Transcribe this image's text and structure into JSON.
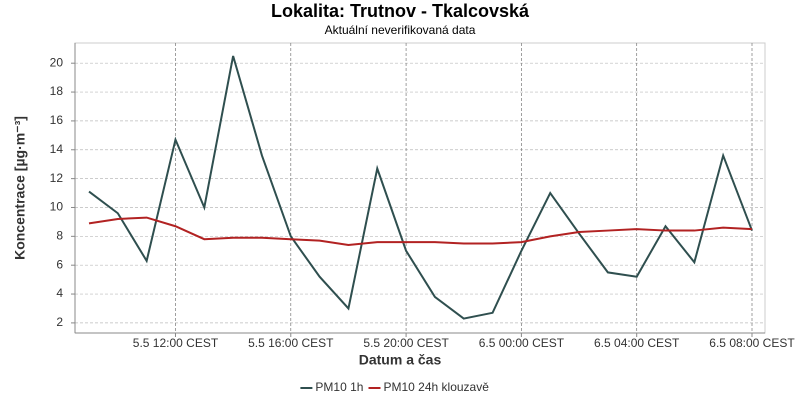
{
  "chart_data": {
    "type": "line",
    "title": "Lokalita: Trutnov - Tkalcovská",
    "subtitle": "Aktuální neverifikovaná data",
    "xlabel": "Datum a čas",
    "ylabel": "Koncentrace [µg·m⁻³]",
    "x": [
      "5.5 09:00 CEST",
      "5.5 10:00 CEST",
      "5.5 11:00 CEST",
      "5.5 12:00 CEST",
      "5.5 13:00 CEST",
      "5.5 14:00 CEST",
      "5.5 15:00 CEST",
      "5.5 16:00 CEST",
      "5.5 17:00 CEST",
      "5.5 18:00 CEST",
      "5.5 19:00 CEST",
      "5.5 20:00 CEST",
      "5.5 21:00 CEST",
      "5.5 22:00 CEST",
      "5.5 23:00 CEST",
      "6.5 00:00 CEST",
      "6.5 01:00 CEST",
      "6.5 02:00 CEST",
      "6.5 03:00 CEST",
      "6.5 04:00 CEST",
      "6.5 05:00 CEST",
      "6.5 06:00 CEST",
      "6.5 07:00 CEST",
      "6.5 08:00 CEST"
    ],
    "xticks": [
      "5.5 12:00 CEST",
      "5.5 16:00 CEST",
      "5.5 20:00 CEST",
      "6.5 00:00 CEST",
      "6.5 04:00 CEST",
      "6.5 08:00 CEST"
    ],
    "series": [
      {
        "name": "PM10 1h",
        "color": "#2f4f4f",
        "values": [
          11.1,
          9.6,
          6.3,
          14.7,
          10.0,
          20.5,
          13.6,
          8.0,
          5.2,
          3.0,
          12.7,
          7.0,
          3.8,
          2.3,
          2.7,
          7.0,
          11.0,
          8.2,
          5.5,
          5.2,
          8.7,
          6.2,
          13.6,
          8.4
        ]
      },
      {
        "name": "PM10 24h klouzavě",
        "color": "#b22222",
        "values": [
          8.9,
          9.2,
          9.3,
          8.7,
          7.8,
          7.9,
          7.9,
          7.8,
          7.7,
          7.4,
          7.6,
          7.6,
          7.6,
          7.5,
          7.5,
          7.6,
          8.0,
          8.3,
          8.4,
          8.5,
          8.4,
          8.4,
          8.6,
          8.5
        ]
      }
    ],
    "ylim": [
      1.3,
      21.4
    ],
    "yticks": [
      2,
      4,
      6,
      8,
      10,
      12,
      14,
      16,
      18,
      20
    ],
    "grid": true
  }
}
